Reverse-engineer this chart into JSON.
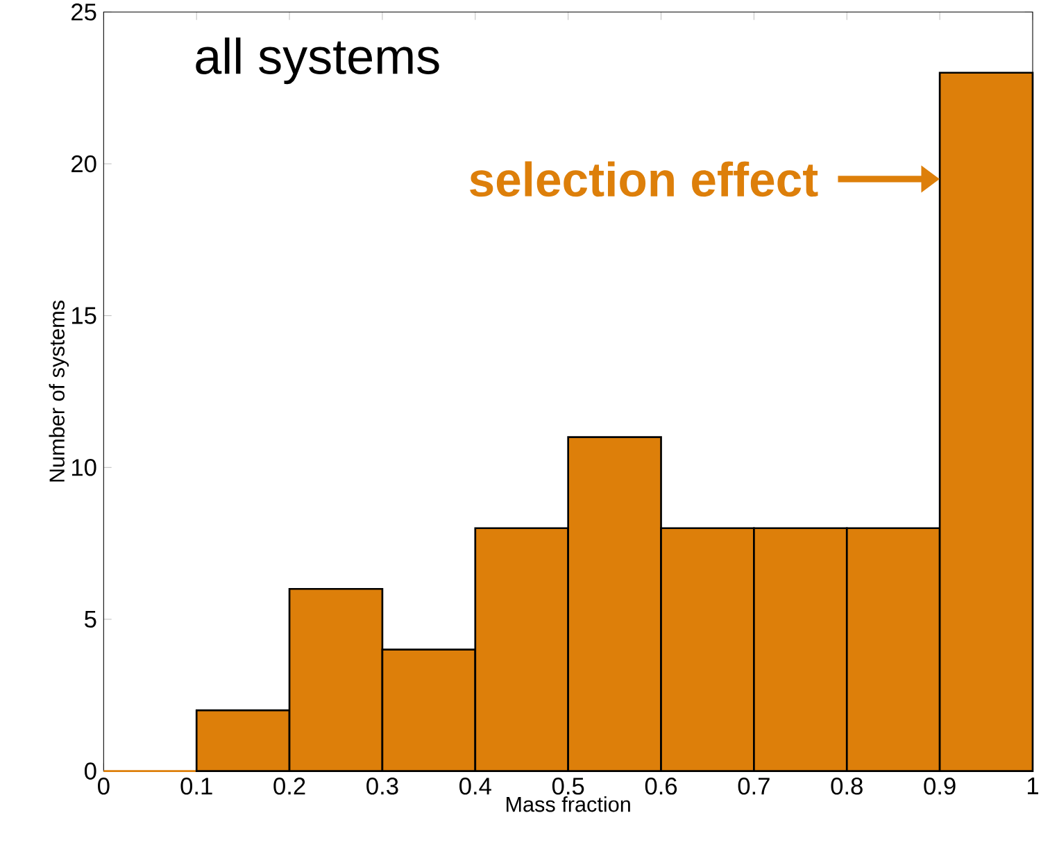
{
  "chart_data": {
    "type": "histogram",
    "xlabel": "Mass fraction",
    "ylabel": "Number of systems",
    "bins": [
      0,
      0.1,
      0.2,
      0.3,
      0.4,
      0.5,
      0.6,
      0.7,
      0.8,
      0.9,
      1
    ],
    "values": [
      0,
      2,
      6,
      4,
      8,
      11,
      8,
      8,
      8,
      23
    ],
    "color": "#dd7f0a",
    "xlim": [
      0,
      1
    ],
    "xticks": [
      0,
      0.1,
      0.2,
      0.3,
      0.4,
      0.5,
      0.6,
      0.7,
      0.8,
      0.9,
      1
    ],
    "ylim": [
      0,
      25
    ],
    "yticks": [
      0,
      5,
      10,
      15,
      20,
      25
    ],
    "annotations": [
      "all systems",
      {
        "text": "selection effect",
        "x": 0.9,
        "y": 19.5
      }
    ]
  }
}
